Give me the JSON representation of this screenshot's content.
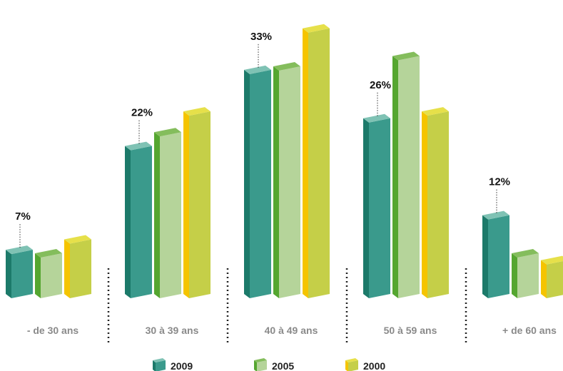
{
  "chart_data": {
    "type": "bar",
    "categories": [
      "- de 30 ans",
      "30 à 39 ans",
      "40 à 49 ans",
      "50 à 59 ans",
      "+ de 60 ans"
    ],
    "series": [
      {
        "name": "2009",
        "values": [
          7,
          22,
          33,
          26,
          12
        ],
        "labels": [
          "7%",
          "22%",
          "33%",
          "26%",
          "12%"
        ],
        "color_front": "#3a9a8c",
        "color_side": "#1c7a6a",
        "color_top": "#7fc2b4"
      },
      {
        "name": "2005",
        "values": [
          6.5,
          24,
          33.5,
          35,
          6.5
        ],
        "color_front": "#b5d49a",
        "color_side": "#55a630",
        "color_top": "#84bd5c"
      },
      {
        "name": "2000",
        "values": [
          8.5,
          27,
          39,
          27,
          5.5
        ],
        "color_front": "#c5cf48",
        "color_side": "#f5c400",
        "color_top": "#e6e04a"
      }
    ],
    "ylim": [
      0,
      40
    ],
    "grid": false,
    "legend_position": "bottom-center"
  }
}
